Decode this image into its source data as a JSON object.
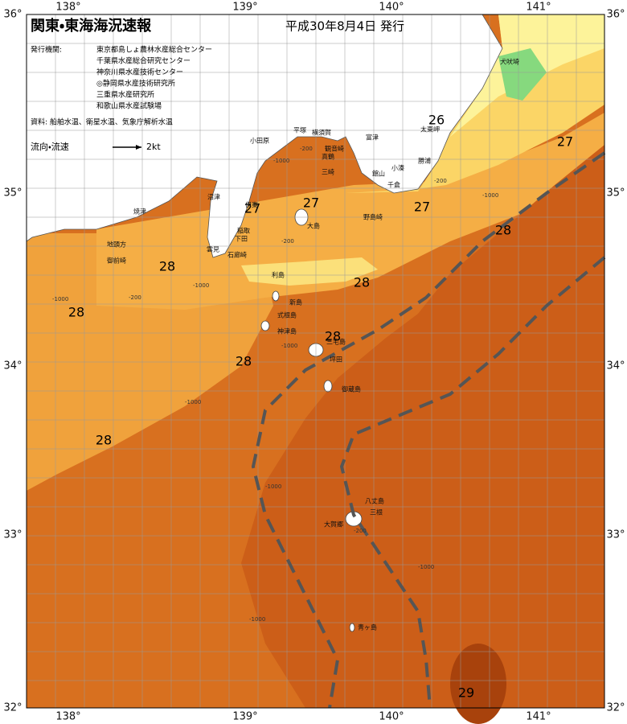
{
  "header": {
    "title": "関東・東海海況速報",
    "date": "平成30年8月4日 発行"
  },
  "issuers": {
    "label": "発行機関:",
    "list": [
      "東京都島しょ農林水産総合センター",
      "千葉県水産総合研究センター",
      "神奈川県水産技術センター",
      "◎静岡県水産技術研究所",
      "三重県水産研究所",
      "和歌山県水産試験場"
    ]
  },
  "source": "資料: 船舶水温、衛星水温、気象庁解析水温",
  "legend": {
    "label": "流向・流速",
    "speed": "2kt"
  },
  "longitude_labels": [
    "138°",
    "139°",
    "140°",
    "141°"
  ],
  "latitude_labels": [
    "36°",
    "35°",
    "34°",
    "33°",
    "32°"
  ],
  "isotherm_labels": [
    "26",
    "27",
    "27",
    "27",
    "27",
    "28",
    "28",
    "28",
    "28",
    "28",
    "28",
    "28",
    "29"
  ],
  "place_names": [
    "犬吠埼",
    "太東岬",
    "勝浦",
    "小湊",
    "千倉",
    "館山",
    "野島崎",
    "富津",
    "観音崎",
    "三崎",
    "横須賀",
    "平塚",
    "小田原",
    "真鶴",
    "伊東",
    "稲取",
    "下田",
    "石廊崎",
    "雲見",
    "沼津",
    "焼津",
    "地頭方",
    "御前崎",
    "大島",
    "利島",
    "新島",
    "式根島",
    "神津島",
    "三宅島",
    "坪田",
    "御蔵島",
    "八丈島",
    "三根",
    "大賀郷",
    "青ヶ島"
  ],
  "depth_labels": [
    "-200",
    "-1000",
    "-200",
    "-1000",
    "-200",
    "-1000",
    "-200",
    "-1000",
    "-1000",
    "-1000",
    "-1000",
    "-200",
    "-1000",
    "-1000"
  ]
}
